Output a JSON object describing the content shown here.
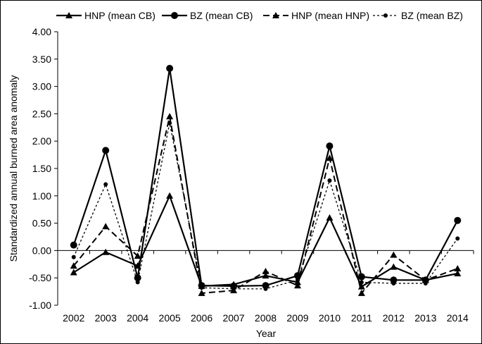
{
  "chart_data": {
    "type": "line",
    "title": "",
    "xlabel": "Year",
    "ylabel": "Standardized annual burned area anomaly",
    "ylim": [
      -1.0,
      4.0
    ],
    "yticks": [
      "4.00",
      "3.50",
      "3.00",
      "2.50",
      "2.00",
      "1.50",
      "1.00",
      "0.50",
      "0.00",
      "-0.50",
      "-1.00"
    ],
    "grid": false,
    "legend_position": "top",
    "categories": [
      "2002",
      "2003",
      "2004",
      "2005",
      "2006",
      "2007",
      "2008",
      "2009",
      "2010",
      "2011",
      "2012",
      "2013",
      "2014"
    ],
    "series": [
      {
        "name": "HNP (mean CB)",
        "line": "solid",
        "marker": "triangle",
        "values": [
          -0.4,
          -0.03,
          -0.28,
          1.0,
          -0.65,
          -0.62,
          -0.46,
          -0.58,
          0.6,
          -0.66,
          -0.3,
          -0.54,
          -0.42
        ]
      },
      {
        "name": "BZ (mean CB)",
        "line": "solid",
        "marker": "circle",
        "values": [
          0.1,
          1.83,
          -0.5,
          3.33,
          -0.64,
          -0.65,
          -0.64,
          -0.46,
          1.91,
          -0.48,
          -0.54,
          -0.54,
          0.55
        ]
      },
      {
        "name": "HNP (mean HNP)",
        "line": "dashed",
        "marker": "triangle",
        "values": [
          -0.28,
          0.44,
          -0.1,
          2.45,
          -0.78,
          -0.73,
          -0.38,
          -0.64,
          1.69,
          -0.78,
          -0.08,
          -0.54,
          -0.33
        ]
      },
      {
        "name": "BZ (mean BZ)",
        "line": "dotted",
        "marker": "small-circle",
        "values": [
          -0.12,
          1.21,
          -0.58,
          2.33,
          -0.68,
          -0.7,
          -0.7,
          -0.54,
          1.28,
          -0.58,
          -0.6,
          -0.6,
          0.22
        ]
      }
    ]
  }
}
